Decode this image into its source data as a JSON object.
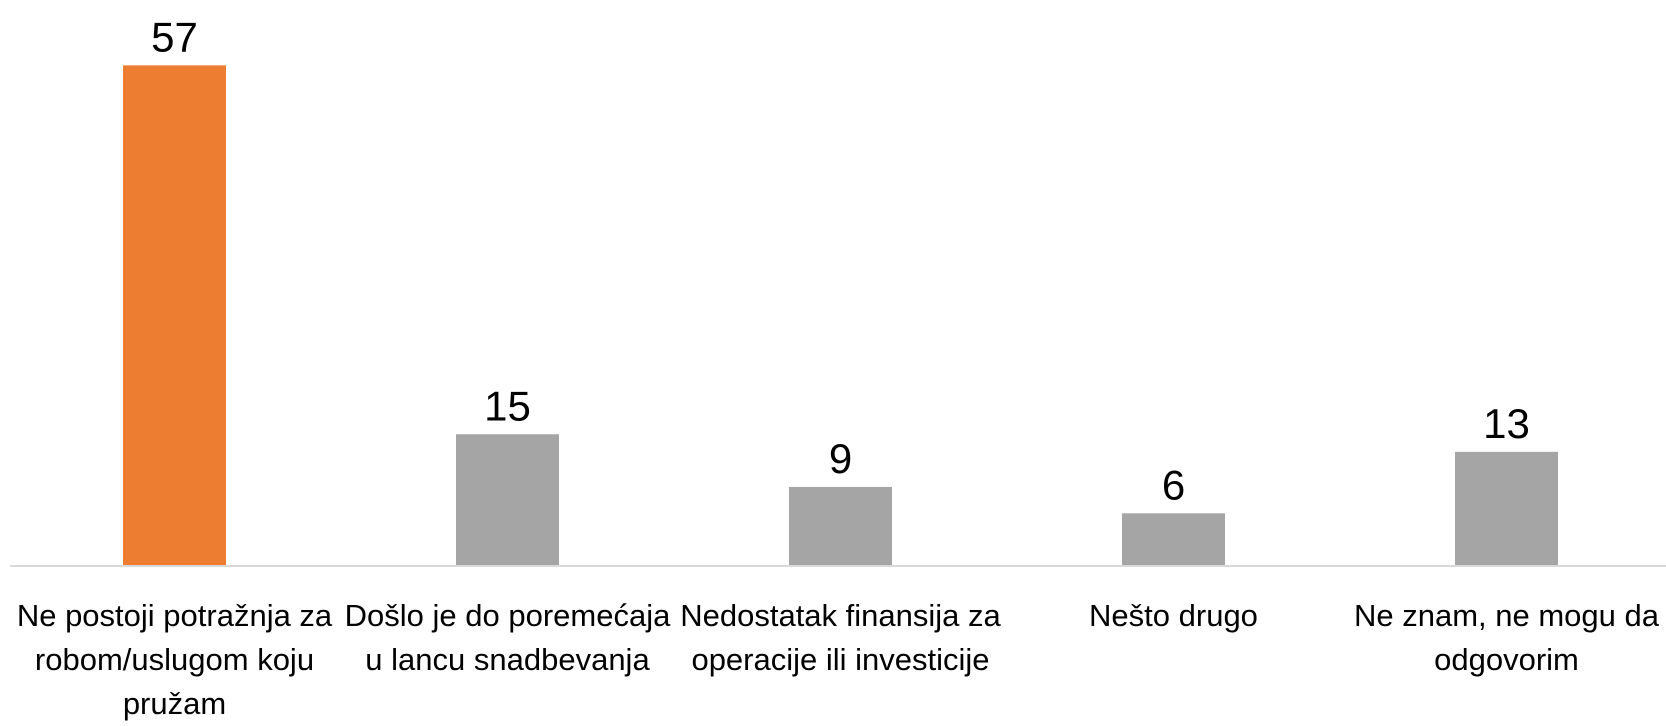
{
  "chart_data": {
    "type": "bar",
    "categories": [
      "Ne postoji potražnja za robom/uslugom koju pružam",
      "Došlo je do poremećaja u lancu snadbevanja",
      "Nedostatak finansija za operacije ili investicije",
      "Nešto drugo",
      "Ne znam, ne mogu da odgovorim"
    ],
    "values": [
      57,
      15,
      9,
      6,
      13
    ],
    "colors": [
      "#ED7D31",
      "#A5A5A5",
      "#A5A5A5",
      "#A5A5A5",
      "#A5A5A5"
    ],
    "ylim": [
      0,
      60
    ],
    "grid": false
  }
}
